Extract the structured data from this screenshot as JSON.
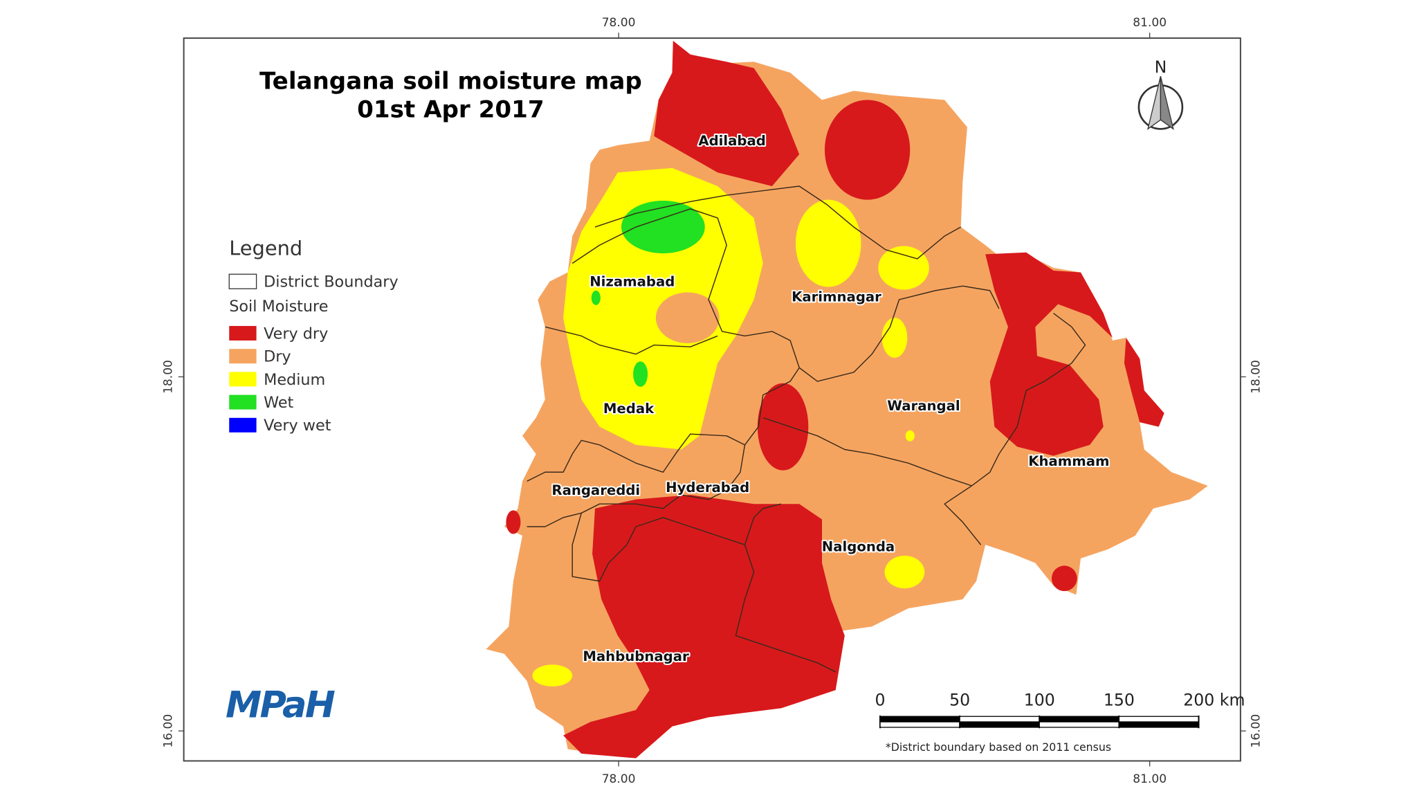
{
  "title": [
    "Telangana soil moisture map",
    "01st Apr 2017"
  ],
  "legend": {
    "title": "Legend",
    "boundary": "District Boundary",
    "group": "Soil Moisture",
    "items": [
      {
        "name": "Very dry",
        "color": "#d7191c"
      },
      {
        "name": "Dry",
        "color": "#f5a460"
      },
      {
        "name": "Medium",
        "color": "#ffff00"
      },
      {
        "name": "Wet",
        "color": "#22e022"
      },
      {
        "name": "Very wet",
        "color": "#0000ff"
      }
    ]
  },
  "districts": [
    "Adilabad",
    "Nizamabad",
    "Karimnagar",
    "Medak",
    "Warangal",
    "Khammam",
    "Rangareddi",
    "Hyderabad",
    "Nalgonda",
    "Mahbubnagar"
  ],
  "grid": {
    "xticks": [
      {
        "value": 78,
        "label": "78.00"
      },
      {
        "value": 81,
        "label": "81.00"
      }
    ],
    "yticks": [
      {
        "value": 18,
        "label": "18.00"
      },
      {
        "value": 16,
        "label": "16.00"
      }
    ]
  },
  "scale_bar": {
    "ticks": [
      0,
      50,
      100,
      150,
      {
        "value": 200,
        "label": "200 km"
      }
    ]
  },
  "north": "N",
  "note": "*District boundary based on 2011 census",
  "logo": "MPaH"
}
